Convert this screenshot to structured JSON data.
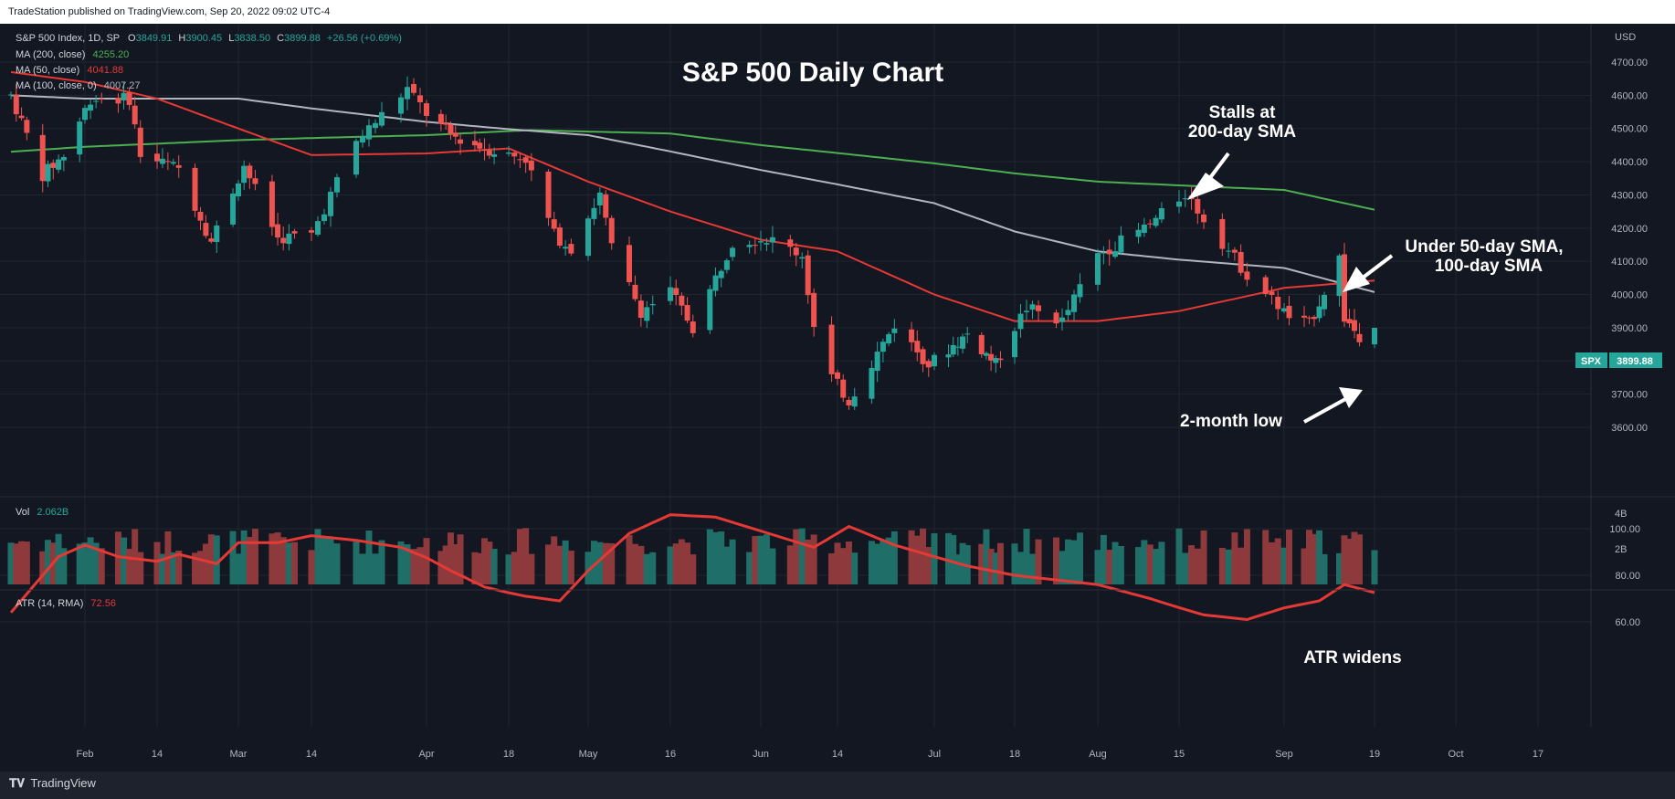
{
  "header": {
    "published": "TradeStation published on TradingView.com, Sep 20, 2022 09:02 UTC-4"
  },
  "footer": {
    "logo_text": "TradingView"
  },
  "legend": {
    "symbol": "S&P 500 Index, 1D, SP",
    "o_label": "O",
    "o": "3849.91",
    "h_label": "H",
    "h": "3900.45",
    "l_label": "L",
    "l": "3838.50",
    "c_label": "C",
    "c": "3899.88",
    "change": "+26.56 (+0.69%)",
    "ma200_label": "MA (200, close)",
    "ma200": "4255.20",
    "ma50_label": "MA (50, close)",
    "ma50": "4041.88",
    "ma100_label": "MA (100, close, 0)",
    "ma100": "4007.27",
    "vol_label": "Vol",
    "vol": "2.062B",
    "atr_label": "ATR (14, RMA)",
    "atr": "72.56"
  },
  "colors": {
    "up": "#26a69a",
    "down": "#ef5350",
    "vol_up": "#1f6f68",
    "vol_down": "#8e3a3d",
    "ma200": "#4caf50",
    "ma50": "#e53935",
    "ma100": "#b2b5be",
    "atr": "#e53935",
    "background": "#131722",
    "grid": "#1f2430",
    "axis_text": "#b2b5be"
  },
  "annotations": {
    "title": "S&P 500 Daily Chart",
    "stalls_1": "Stalls at",
    "stalls_2": "200-day SMA",
    "under_1": "Under 50-day SMA,",
    "under_2": "100-day SMA",
    "low": "2-month low",
    "atr": "ATR widens"
  },
  "price_badge": {
    "symbol": "SPX",
    "value": "3899.88"
  },
  "chart_data": [
    {
      "type": "candlestick",
      "title": "S&P 500 Daily Chart",
      "currency": "USD",
      "ylim": [
        3560,
        4760
      ],
      "y_ticks": [
        4700,
        4600,
        4500,
        4400,
        4300,
        4200,
        4100,
        4000,
        3900,
        3800,
        3700,
        3600
      ],
      "y_tick_labels": [
        "4700.00",
        "4600.00",
        "4500.00",
        "4400.00",
        "4300.00",
        "4200.00",
        "4100.00",
        "4000.00",
        "3900.00",
        "3800.00",
        "3700.00",
        "3600.00"
      ],
      "x_tick_labels": [
        "Feb",
        "14",
        "Mar",
        "14",
        "Apr",
        "18",
        "May",
        "16",
        "Jun",
        "14",
        "Jul",
        "18",
        "Aug",
        "15",
        "Sep",
        "19",
        "Oct",
        "17"
      ],
      "x_tick_dates": [
        "2022-02-01",
        "2022-02-14",
        "2022-03-01",
        "2022-03-14",
        "2022-04-01",
        "2022-04-18",
        "2022-05-02",
        "2022-05-16",
        "2022-06-01",
        "2022-06-14",
        "2022-07-01",
        "2022-07-18",
        "2022-08-01",
        "2022-08-15",
        "2022-09-01",
        "2022-09-19",
        "2022-10-03",
        "2022-10-17"
      ],
      "date_range": [
        "2022-01-18",
        "2022-09-20"
      ],
      "price_path": [
        [
          "2022-01-18",
          4600
        ],
        [
          "2022-01-24",
          4360
        ],
        [
          "2022-01-28",
          4420
        ],
        [
          "2022-02-02",
          4590
        ],
        [
          "2022-02-09",
          4590
        ],
        [
          "2022-02-11",
          4420
        ],
        [
          "2022-02-18",
          4380
        ],
        [
          "2022-02-24",
          4160
        ],
        [
          "2022-03-02",
          4390
        ],
        [
          "2022-03-08",
          4170
        ],
        [
          "2022-03-14",
          4180
        ],
        [
          "2022-03-21",
          4460
        ],
        [
          "2022-03-29",
          4620
        ],
        [
          "2022-04-01",
          4545
        ],
        [
          "2022-04-06",
          4480
        ],
        [
          "2022-04-13",
          4440
        ],
        [
          "2022-04-21",
          4410
        ],
        [
          "2022-04-26",
          4180
        ],
        [
          "2022-04-29",
          4140
        ],
        [
          "2022-05-04",
          4300
        ],
        [
          "2022-05-06",
          4140
        ],
        [
          "2022-05-11",
          3950
        ],
        [
          "2022-05-16",
          4010
        ],
        [
          "2022-05-20",
          3900
        ],
        [
          "2022-05-27",
          4160
        ],
        [
          "2022-06-02",
          4170
        ],
        [
          "2022-06-08",
          4120
        ],
        [
          "2022-06-10",
          3900
        ],
        [
          "2022-06-13",
          3750
        ],
        [
          "2022-06-16",
          3680
        ],
        [
          "2022-06-24",
          3910
        ],
        [
          "2022-06-30",
          3790
        ],
        [
          "2022-07-08",
          3880
        ],
        [
          "2022-07-14",
          3790
        ],
        [
          "2022-07-20",
          3960
        ],
        [
          "2022-07-26",
          3920
        ],
        [
          "2022-08-01",
          4120
        ],
        [
          "2022-08-10",
          4210
        ],
        [
          "2022-08-16",
          4305
        ],
        [
          "2022-08-19",
          4230
        ],
        [
          "2022-08-26",
          4060
        ],
        [
          "2022-09-02",
          3930
        ],
        [
          "2022-09-06",
          3910
        ],
        [
          "2022-09-12",
          4110
        ],
        [
          "2022-09-13",
          3930
        ],
        [
          "2022-09-16",
          3875
        ],
        [
          "2022-09-19",
          3899.88
        ]
      ],
      "series": [
        {
          "name": "MA (200, close)",
          "values": [
            [
              "2022-01-18",
              4430
            ],
            [
              "2022-02-01",
              4445
            ],
            [
              "2022-03-01",
              4465
            ],
            [
              "2022-04-01",
              4480
            ],
            [
              "2022-04-22",
              4495
            ],
            [
              "2022-05-16",
              4485
            ],
            [
              "2022-06-01",
              4450
            ],
            [
              "2022-07-01",
              4395
            ],
            [
              "2022-08-01",
              4340
            ],
            [
              "2022-09-01",
              4315
            ],
            [
              "2022-09-19",
              4255.2
            ]
          ]
        },
        {
          "name": "MA (50, close)",
          "values": [
            [
              "2022-01-18",
              4670
            ],
            [
              "2022-02-01",
              4640
            ],
            [
              "2022-02-14",
              4590
            ],
            [
              "2022-03-01",
              4500
            ],
            [
              "2022-03-14",
              4420
            ],
            [
              "2022-04-01",
              4425
            ],
            [
              "2022-04-18",
              4440
            ],
            [
              "2022-05-02",
              4340
            ],
            [
              "2022-05-16",
              4250
            ],
            [
              "2022-06-01",
              4165
            ],
            [
              "2022-06-14",
              4130
            ],
            [
              "2022-07-01",
              4000
            ],
            [
              "2022-07-18",
              3920
            ],
            [
              "2022-08-01",
              3920
            ],
            [
              "2022-08-15",
              3950
            ],
            [
              "2022-09-01",
              4020
            ],
            [
              "2022-09-19",
              4041.88
            ]
          ]
        },
        {
          "name": "MA (100, close, 0)",
          "values": [
            [
              "2022-01-18",
              4600
            ],
            [
              "2022-02-01",
              4590
            ],
            [
              "2022-03-01",
              4590
            ],
            [
              "2022-04-01",
              4520
            ],
            [
              "2022-05-02",
              4480
            ],
            [
              "2022-06-01",
              4375
            ],
            [
              "2022-07-01",
              4275
            ],
            [
              "2022-07-18",
              4190
            ],
            [
              "2022-08-01",
              4130
            ],
            [
              "2022-08-15",
              4105
            ],
            [
              "2022-09-01",
              4080
            ],
            [
              "2022-09-19",
              4007.27
            ]
          ]
        }
      ]
    },
    {
      "type": "bar",
      "title": "Vol",
      "ylim": [
        0,
        5000000000
      ],
      "y_tick_labels": [
        "4B",
        "2B"
      ],
      "y_ticks": [
        4000000000,
        2000000000
      ],
      "last_value": "2.062B"
    },
    {
      "type": "line",
      "title": "ATR (14, RMA)",
      "ylim": [
        52,
        110
      ],
      "y_ticks": [
        100,
        80,
        60
      ],
      "y_tick_labels": [
        "100.00",
        "80.00",
        "60.00"
      ],
      "series": [
        {
          "name": "ATR (14, RMA)",
          "values": [
            [
              "2022-01-18",
              64
            ],
            [
              "2022-01-21",
              72
            ],
            [
              "2022-01-27",
              88
            ],
            [
              "2022-02-01",
              93
            ],
            [
              "2022-02-07",
              88
            ],
            [
              "2022-02-14",
              86
            ],
            [
              "2022-02-18",
              89
            ],
            [
              "2022-02-25",
              85
            ],
            [
              "2022-03-01",
              94
            ],
            [
              "2022-03-08",
              94
            ],
            [
              "2022-03-14",
              97
            ],
            [
              "2022-03-21",
              95
            ],
            [
              "2022-03-28",
              92
            ],
            [
              "2022-04-06",
              82
            ],
            [
              "2022-04-13",
              75
            ],
            [
              "2022-04-21",
              71
            ],
            [
              "2022-04-27",
              69
            ],
            [
              "2022-05-02",
              82
            ],
            [
              "2022-05-09",
              98
            ],
            [
              "2022-05-16",
              106
            ],
            [
              "2022-05-24",
              105
            ],
            [
              "2022-06-01",
              99
            ],
            [
              "2022-06-10",
              92
            ],
            [
              "2022-06-16",
              101
            ],
            [
              "2022-06-24",
              93
            ],
            [
              "2022-07-01",
              88
            ],
            [
              "2022-07-08",
              84
            ],
            [
              "2022-07-18",
              80
            ],
            [
              "2022-08-01",
              76
            ],
            [
              "2022-08-10",
              70
            ],
            [
              "2022-08-19",
              63
            ],
            [
              "2022-08-26",
              61
            ],
            [
              "2022-09-01",
              66
            ],
            [
              "2022-09-08",
              69
            ],
            [
              "2022-09-13",
              76
            ],
            [
              "2022-09-19",
              72.56
            ]
          ]
        }
      ]
    }
  ]
}
